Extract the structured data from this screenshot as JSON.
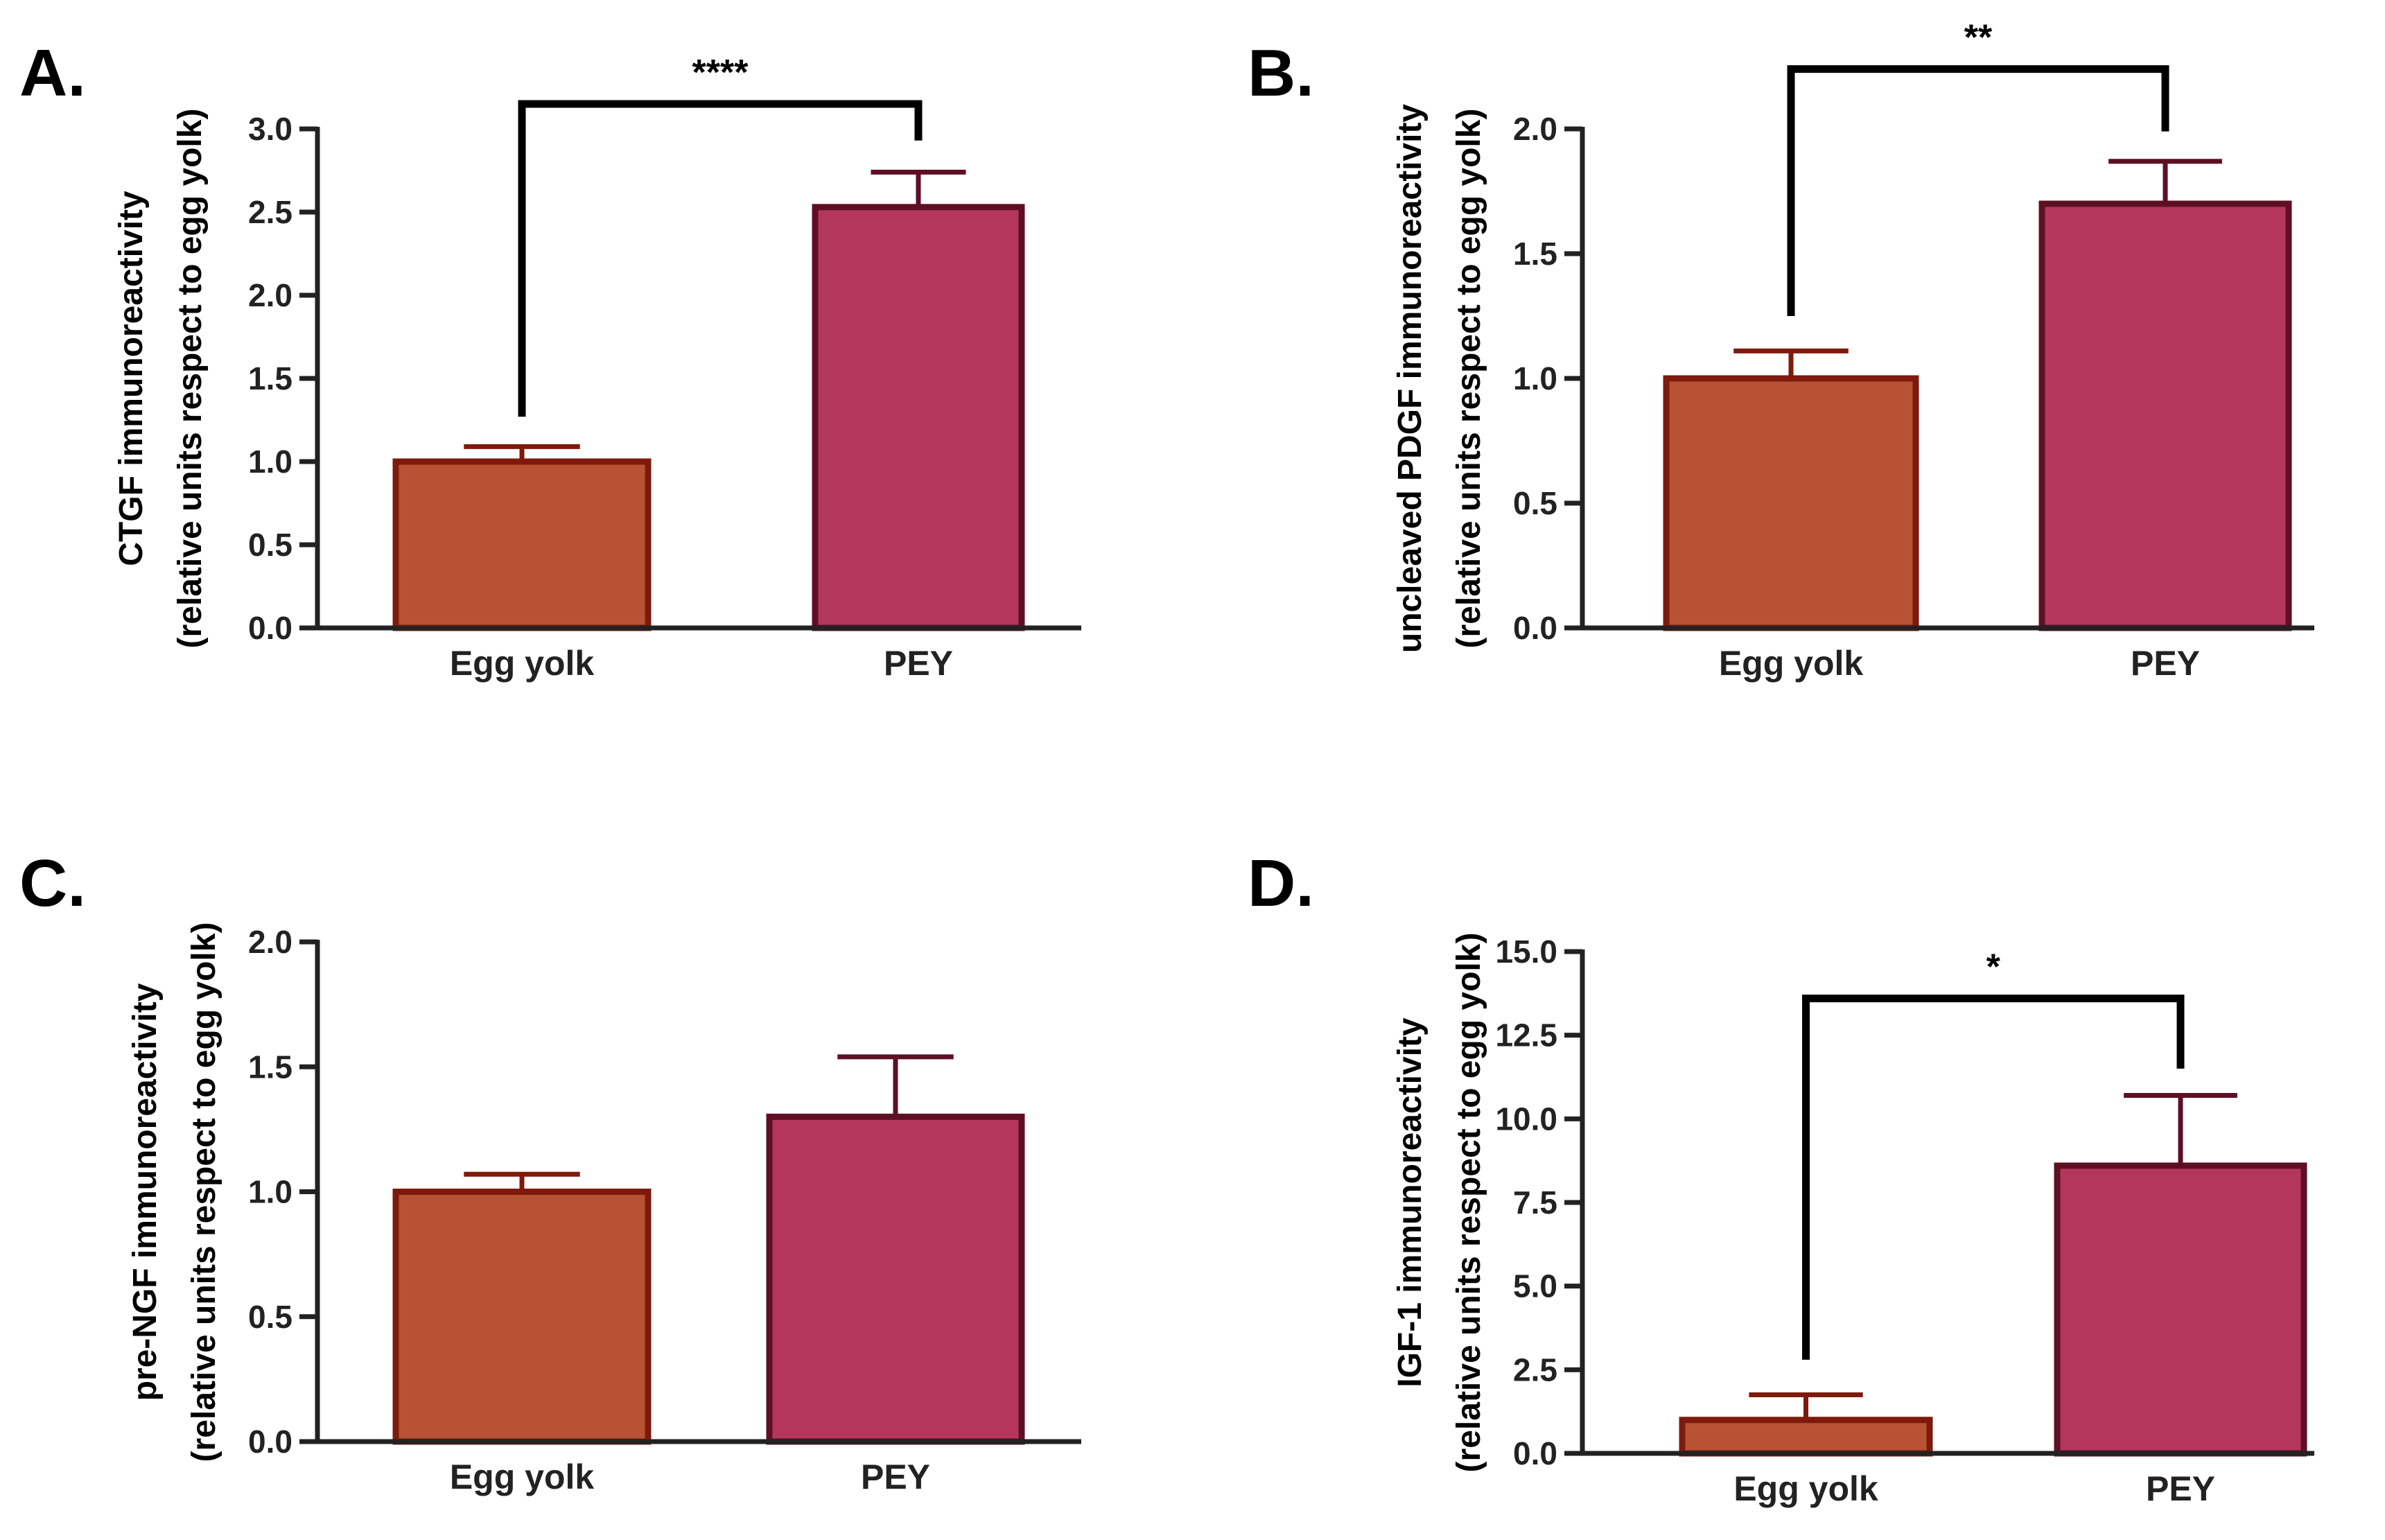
{
  "figure": {
    "background": "#ffffff",
    "colors": {
      "egg_yolk_fill": "#b85235",
      "egg_yolk_stroke": "#7e1a0c",
      "pey_fill": "#b4365e",
      "pey_stroke": "#5e0f24",
      "axis": "#222222",
      "bracket": "#000000"
    }
  },
  "chart_data": [
    {
      "panel": "A.",
      "type": "bar",
      "categories": [
        "Egg yolk",
        "PEY"
      ],
      "values": [
        1.0,
        2.53
      ],
      "errors": [
        0.09,
        0.21
      ],
      "ylim": [
        0,
        3.0
      ],
      "yticks": [
        "0.0",
        "0.5",
        "1.0",
        "1.5",
        "2.0",
        "2.5",
        "3.0"
      ],
      "ytick_values": [
        0,
        0.5,
        1.0,
        1.5,
        2.0,
        2.5,
        3.0
      ],
      "ylabel_line1": "CTGF immunoreactivity",
      "ylabel_line2": "(relative units respect to egg yolk)",
      "xlabel": "",
      "significance": {
        "label": "****",
        "left_y": 1.27,
        "top_y": 3.15,
        "right_y": 2.93
      }
    },
    {
      "panel": "B.",
      "type": "bar",
      "categories": [
        "Egg yolk",
        "PEY"
      ],
      "values": [
        1.0,
        1.7
      ],
      "errors": [
        0.11,
        0.17
      ],
      "ylim": [
        0,
        2.0
      ],
      "yticks": [
        "0.0",
        "0.5",
        "1.0",
        "1.5",
        "2.0"
      ],
      "ytick_values": [
        0,
        0.5,
        1.0,
        1.5,
        2.0
      ],
      "ylabel_line1": "uncleaved PDGF immunoreactivity",
      "ylabel_line2": "(relative units respect to egg yolk)",
      "xlabel": "",
      "significance": {
        "label": "**",
        "left_y": 1.25,
        "top_y": 2.24,
        "right_y": 1.99
      }
    },
    {
      "panel": "C.",
      "type": "bar",
      "categories": [
        "Egg yolk",
        "PEY"
      ],
      "values": [
        1.0,
        1.3
      ],
      "errors": [
        0.07,
        0.24
      ],
      "ylim": [
        0,
        2.0
      ],
      "yticks": [
        "0.0",
        "0.5",
        "1.0",
        "1.5",
        "2.0"
      ],
      "ytick_values": [
        0,
        0.5,
        1.0,
        1.5,
        2.0
      ],
      "ylabel_line1": "pre-NGF immunoreactivity",
      "ylabel_line2": "(relative units respect to egg yolk)",
      "xlabel": ""
    },
    {
      "panel": "D.",
      "type": "bar",
      "categories": [
        "Egg yolk",
        "PEY"
      ],
      "values": [
        1.0,
        8.6
      ],
      "errors": [
        0.75,
        2.1
      ],
      "ylim": [
        0,
        15.0
      ],
      "yticks": [
        "0.0",
        "2.5",
        "5.0",
        "7.5",
        "10.0",
        "12.5",
        "15.0"
      ],
      "ytick_values": [
        0,
        2.5,
        5.0,
        7.5,
        10.0,
        12.5,
        15.0
      ],
      "ylabel_line1": "IGF-1 immunoreactivity",
      "ylabel_line2": "(relative units respect to egg yolk)",
      "xlabel": "",
      "significance": {
        "label": "*",
        "left_y": 2.8,
        "top_y": 13.6,
        "right_y": 11.5
      }
    }
  ]
}
